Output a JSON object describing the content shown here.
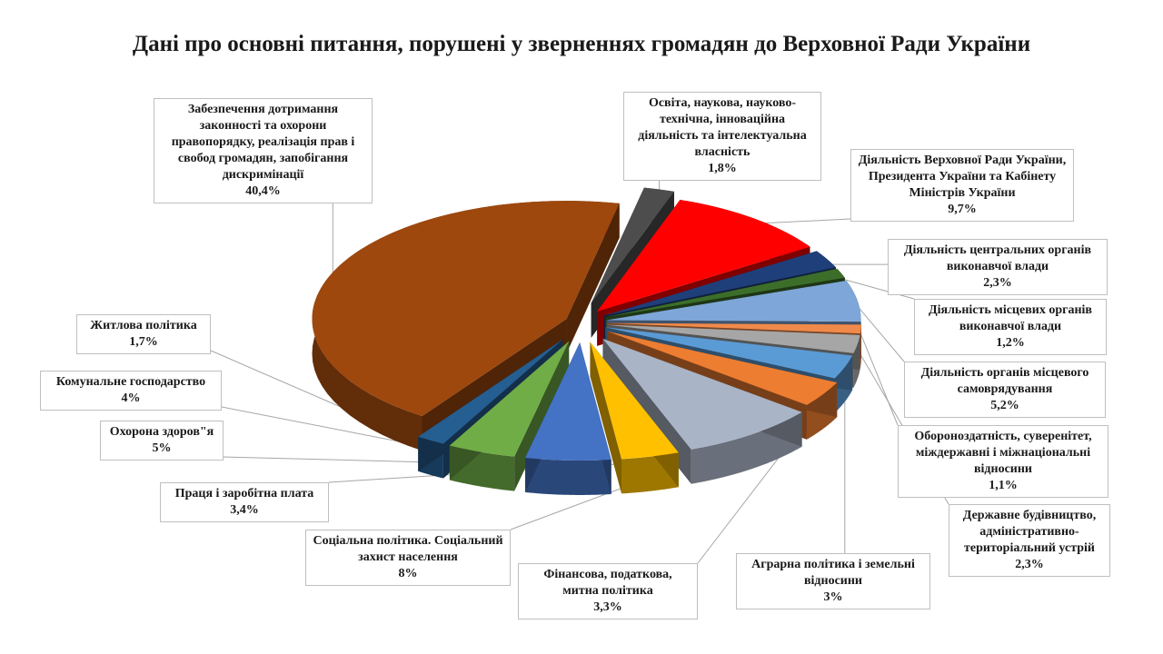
{
  "chart_data": {
    "type": "pie",
    "title": "Дані про основні питання, порушені у зверненнях громадян до Верховної Ради України",
    "slices": [
      {
        "name": "Освіта, наукова, науково-технічна, інноваційна діяльність та інтелектуальна власність",
        "value": 1.8,
        "value_label": "1,8%",
        "color": "#4d4d4d"
      },
      {
        "name": "Діяльність Верховної Ради України, Президента України та Кабінету Міністрів України",
        "value": 9.7,
        "value_label": "9,7%",
        "color": "#ff0000"
      },
      {
        "name": "Діяльність центральних органів виконавчої влади",
        "value": 2.3,
        "value_label": "2,3%",
        "color": "#1f3f7a"
      },
      {
        "name": "Діяльність місцевих органів виконавчої влади",
        "value": 1.2,
        "value_label": "1,2%",
        "color": "#3c6e2a"
      },
      {
        "name": "Діяльність органів місцевого самоврядування",
        "value": 5.2,
        "value_label": "5,2%",
        "color": "#7ea6d8"
      },
      {
        "name": "Обороноздатність, суверенітет, міждержавні і міжнаціональні відносини",
        "value": 1.1,
        "value_label": "1,1%",
        "color": "#f08a4b"
      },
      {
        "name": "Державне будівництво, адміністративно-територіальний устрій",
        "value": 2.3,
        "value_label": "2,3%",
        "color": "#a6a6a6"
      },
      {
        "name": "Аграрна політика і земельні відносини",
        "value": 3,
        "value_label": "3%",
        "color": "#5b9bd5"
      },
      {
        "name": "Фінансова, податкова, митна політика",
        "value": 3.3,
        "value_label": "3,3%",
        "color": "#ed7d31"
      },
      {
        "name": "Соціальна політика. Соціальний захист населення",
        "value": 8,
        "value_label": "8%",
        "color": "#a9b4c6"
      },
      {
        "name": "Праця і заробітна плата",
        "value": 3.4,
        "value_label": "3,4%",
        "color": "#ffc000"
      },
      {
        "name": "Охорона здоров\"я",
        "value": 5,
        "value_label": "5%",
        "color": "#4472c4"
      },
      {
        "name": "Комунальне господарство",
        "value": 4,
        "value_label": "4%",
        "color": "#70ad47"
      },
      {
        "name": "Житлова політика",
        "value": 1.7,
        "value_label": "1,7%",
        "color": "#255e91"
      },
      {
        "name": "Забезпечення дотримання законності та охорони правопорядку, реалізація прав і свобод громадян, запобігання дискримінації",
        "value": 40.4,
        "value_label": "40,4%",
        "color": "#9e480e"
      }
    ]
  }
}
